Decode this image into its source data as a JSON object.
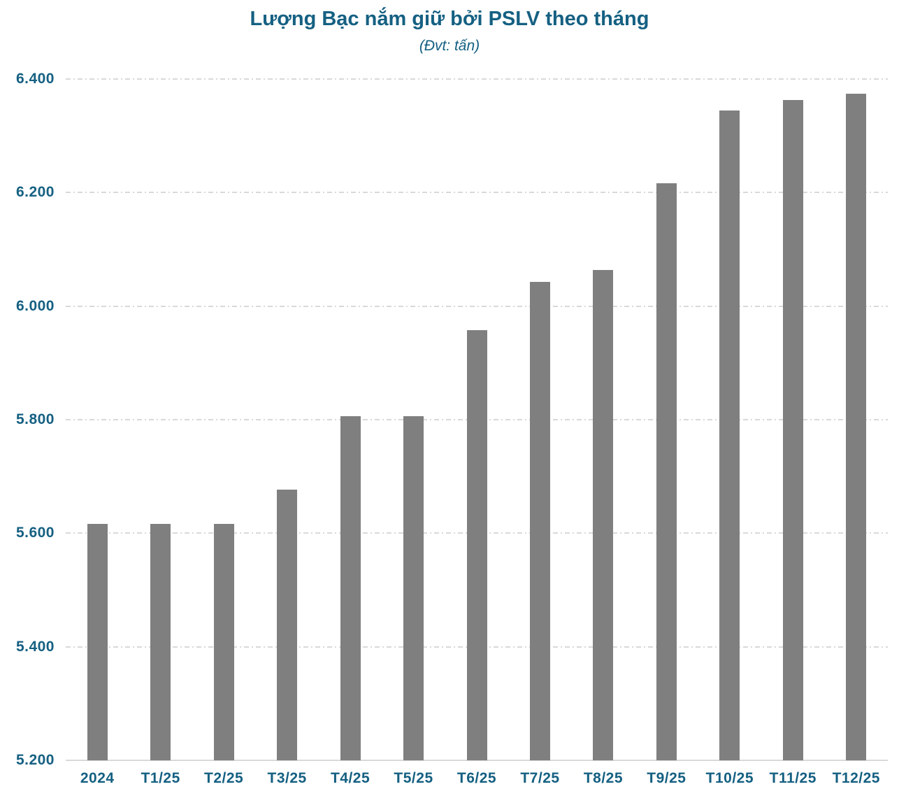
{
  "chart_data": {
    "type": "bar",
    "title": "Lượng Bạc nắm giữ bởi PSLV theo tháng",
    "subtitle": "(Đvt: tấn)",
    "categories": [
      "2024",
      "T1/25",
      "T2/25",
      "T3/25",
      "T4/25",
      "T5/25",
      "T6/25",
      "T7/25",
      "T8/25",
      "T9/25",
      "T10/25",
      "T11/25",
      "T12/25"
    ],
    "values": [
      5616,
      5616,
      5616,
      5677,
      5806,
      5806,
      5958,
      6043,
      6064,
      6216,
      6344,
      6363,
      6374
    ],
    "series_name": "Lượng Bạc nắm giữ bởi PSLV",
    "xlabel": "",
    "ylabel": "",
    "ylim": [
      5200,
      6400
    ],
    "ytick_step": 200,
    "ytick_labels": [
      "5.200",
      "5.400",
      "5.600",
      "5.800",
      "6.000",
      "6.200",
      "6.400"
    ],
    "grid": "horizontal-dash-dot",
    "legend_position": "none",
    "colors": {
      "bar": "#7F7F7F",
      "text": "#156082",
      "gridline": "#D9D9D9",
      "axis_line": "#D9D9D9",
      "background": "#FFFFFF"
    }
  }
}
